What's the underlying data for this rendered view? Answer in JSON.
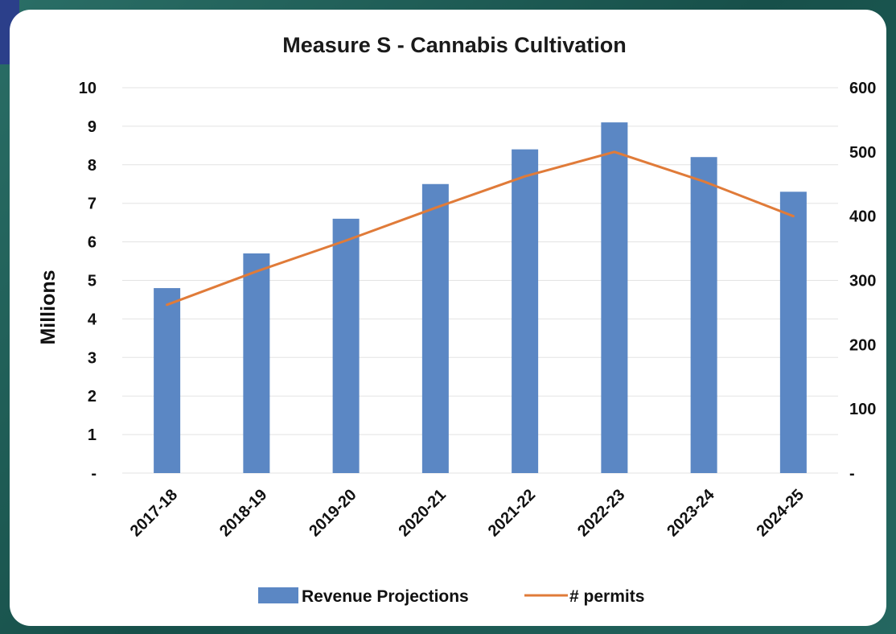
{
  "chart_data": {
    "type": "bar",
    "title": "Measure S - Cannabis Cultivation",
    "ylabel": "Millions",
    "categories": [
      "2017-18",
      "2018-19",
      "2019-20",
      "2020-21",
      "2021-22",
      "2022-23",
      "2023-24",
      "2024-25"
    ],
    "ylim": [
      0,
      10
    ],
    "y_ticks": [
      "-",
      "1",
      "2",
      "3",
      "4",
      "5",
      "6",
      "7",
      "8",
      "9",
      "10"
    ],
    "y2lim": [
      0,
      600
    ],
    "y2_ticks": [
      "-",
      "100",
      "200",
      "300",
      "400",
      "500",
      "600"
    ],
    "series": [
      {
        "name": "Revenue Projections",
        "type": "bar",
        "axis": "left",
        "color": "#5b87c4",
        "values": [
          4.8,
          5.7,
          6.6,
          7.5,
          8.4,
          9.1,
          8.2,
          7.3
        ]
      },
      {
        "name": "# permits",
        "type": "line",
        "axis": "right",
        "color": "#e07b39",
        "values": [
          262,
          314,
          362,
          413,
          462,
          500,
          454,
          400
        ]
      }
    ],
    "grid": true,
    "legend_position": "bottom"
  }
}
